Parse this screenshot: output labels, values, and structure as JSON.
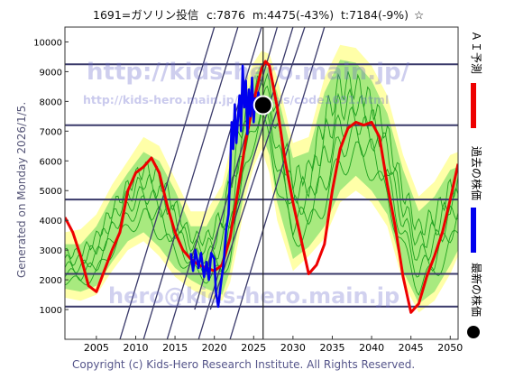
{
  "header": {
    "title": "1691=ガソリン投信",
    "stats": "c:7876  m:4475(-43%)  t:7184(-9%)",
    "star": "☆"
  },
  "side": {
    "generated": "Generated on Monday 2026/1/5.",
    "watermark_url1": "http://kids-hero.main.jp/",
    "watermark_url2": "http://kids-hero.main.jp/analysis/code1691.html",
    "watermark_mail": "hero@kids-hero.main.jp"
  },
  "footer": {
    "copyright": "Copyright (c) Kids-Hero Research Institute. All Rights Reserved."
  },
  "legend": {
    "items": [
      {
        "label": "ＡＩ予測",
        "color": "#ee0000",
        "symbol": "line"
      },
      {
        "label": "過去の株価",
        "color": "#0000ee",
        "symbol": "line"
      },
      {
        "label": "最新の株価",
        "color": "#000000",
        "symbol": "dot"
      }
    ]
  },
  "chart_data": {
    "type": "line",
    "xlim": [
      2001,
      2051
    ],
    "ylim": [
      0,
      10500
    ],
    "x_ticks": [
      2005,
      2010,
      2015,
      2020,
      2025,
      2030,
      2035,
      2040,
      2045,
      2050
    ],
    "y_ticks": [
      1000,
      2000,
      3000,
      4000,
      5000,
      6000,
      7000,
      8000,
      9000,
      10000
    ],
    "hlines": [
      9250,
      7200,
      4700,
      2200,
      1100
    ],
    "vline_x": 2026.2,
    "trend_lines": [
      {
        "from": [
          2017.5,
          1000
        ],
        "to": [
          2028.0,
          10500
        ]
      },
      {
        "from": [
          2019.5,
          1000
        ],
        "to": [
          2031.5,
          10500
        ]
      },
      {
        "from": [
          2014.0,
          0
        ],
        "to": [
          2026.0,
          10500
        ]
      },
      {
        "from": [
          2011.0,
          0
        ],
        "to": [
          2023.0,
          10500
        ]
      },
      {
        "from": [
          2008.0,
          0
        ],
        "to": [
          2020.0,
          10500
        ]
      },
      {
        "from": [
          2018.0,
          0
        ],
        "to": [
          2030.0,
          10500
        ]
      },
      {
        "from": [
          2022.0,
          0
        ],
        "to": [
          2034.0,
          10500
        ]
      }
    ],
    "band_outer": {
      "x": [
        2001,
        2003,
        2005,
        2007,
        2009,
        2011,
        2013,
        2015,
        2017,
        2019,
        2021,
        2022,
        2023,
        2024,
        2025,
        2026,
        2027,
        2028,
        2030,
        2032,
        2034,
        2036,
        2038,
        2040,
        2042,
        2044,
        2046,
        2048,
        2050,
        2051
      ],
      "low": [
        1400,
        1300,
        1500,
        2300,
        3000,
        3300,
        2800,
        2100,
        1700,
        1400,
        1300,
        1900,
        3200,
        4800,
        5800,
        6400,
        5600,
        4000,
        2300,
        2800,
        3400,
        4600,
        5000,
        4600,
        3800,
        1900,
        900,
        1300,
        2200,
        2800
      ],
      "high": [
        3600,
        3700,
        4200,
        5200,
        6000,
        6800,
        6500,
        5400,
        4300,
        4300,
        5200,
        6400,
        7800,
        8700,
        9300,
        9700,
        9600,
        8800,
        6600,
        6800,
        8800,
        9900,
        9800,
        9200,
        8200,
        6200,
        4800,
        5300,
        6200,
        6300
      ]
    },
    "band_inner": {
      "x": [
        2001,
        2003,
        2005,
        2007,
        2009,
        2011,
        2013,
        2015,
        2017,
        2019,
        2021,
        2022,
        2023,
        2024,
        2025,
        2026,
        2027,
        2028,
        2030,
        2032,
        2034,
        2036,
        2038,
        2040,
        2042,
        2044,
        2046,
        2048,
        2050,
        2051
      ],
      "low": [
        1700,
        1600,
        1800,
        2600,
        3300,
        3600,
        3100,
        2400,
        2000,
        1700,
        1500,
        2300,
        3700,
        5300,
        6200,
        6900,
        6200,
        4600,
        2700,
        3100,
        3800,
        5000,
        5500,
        5000,
        4200,
        2300,
        1200,
        1600,
        2500,
        3000
      ],
      "high": [
        3200,
        3200,
        3800,
        4800,
        5600,
        6300,
        6000,
        5000,
        3800,
        3800,
        4800,
        5900,
        7300,
        8200,
        8800,
        9300,
        9100,
        8300,
        6100,
        6300,
        8300,
        9400,
        9300,
        8700,
        7600,
        5700,
        4300,
        4800,
        5700,
        5800
      ]
    },
    "series": [
      {
        "name": "ＡＩ予測",
        "color": "#ee0000",
        "x": [
          2001,
          2002,
          2003,
          2004,
          2005,
          2006,
          2007,
          2008,
          2009,
          2010,
          2011,
          2012,
          2013,
          2014,
          2015,
          2016,
          2017,
          2018,
          2019,
          2020,
          2021,
          2022,
          2023,
          2024,
          2025,
          2026,
          2026.5,
          2027,
          2028,
          2029,
          2030,
          2031,
          2032,
          2033,
          2034,
          2035,
          2036,
          2037,
          2038,
          2039,
          2040,
          2041,
          2042,
          2043,
          2044,
          2045,
          2046,
          2047,
          2048,
          2049,
          2050,
          2051
        ],
        "y": [
          4100,
          3600,
          2800,
          1800,
          1600,
          2300,
          3000,
          3600,
          5000,
          5600,
          5800,
          6100,
          5600,
          4500,
          3600,
          3000,
          2700,
          2500,
          2400,
          2300,
          2500,
          3400,
          5000,
          6700,
          8000,
          9100,
          9350,
          9200,
          7800,
          6000,
          4600,
          3400,
          2200,
          2500,
          3200,
          5000,
          6400,
          7100,
          7300,
          7200,
          7300,
          6800,
          5200,
          3800,
          2100,
          900,
          1200,
          2100,
          2800,
          3600,
          4700,
          5900
        ]
      },
      {
        "name": "過去の株価",
        "color": "#0000ee",
        "x": [
          2017,
          2017.3,
          2017.6,
          2018,
          2018.3,
          2018.7,
          2019,
          2019.3,
          2019.6,
          2020,
          2020.2,
          2020.5,
          2020.8,
          2021,
          2021.2,
          2021.5,
          2021.8,
          2022,
          2022.2,
          2022.4,
          2022.6,
          2022.8,
          2023,
          2023.2,
          2023.4,
          2023.6,
          2023.8,
          2024,
          2024.2,
          2024.4,
          2024.6,
          2024.8,
          2025,
          2025.2,
          2025.4,
          2025.6,
          2025.8,
          2026
        ],
        "y": [
          2900,
          2300,
          3000,
          2400,
          2900,
          2100,
          2600,
          2000,
          2900,
          2700,
          1600,
          1100,
          1800,
          2200,
          2600,
          3700,
          4200,
          5500,
          7300,
          6400,
          7900,
          6600,
          7400,
          8200,
          7000,
          9200,
          7800,
          8700,
          6900,
          8400,
          7500,
          8800,
          7300,
          8100,
          7700,
          8300,
          7900,
          7876
        ]
      }
    ],
    "latest": {
      "x": 2026.2,
      "y": 7876
    }
  }
}
